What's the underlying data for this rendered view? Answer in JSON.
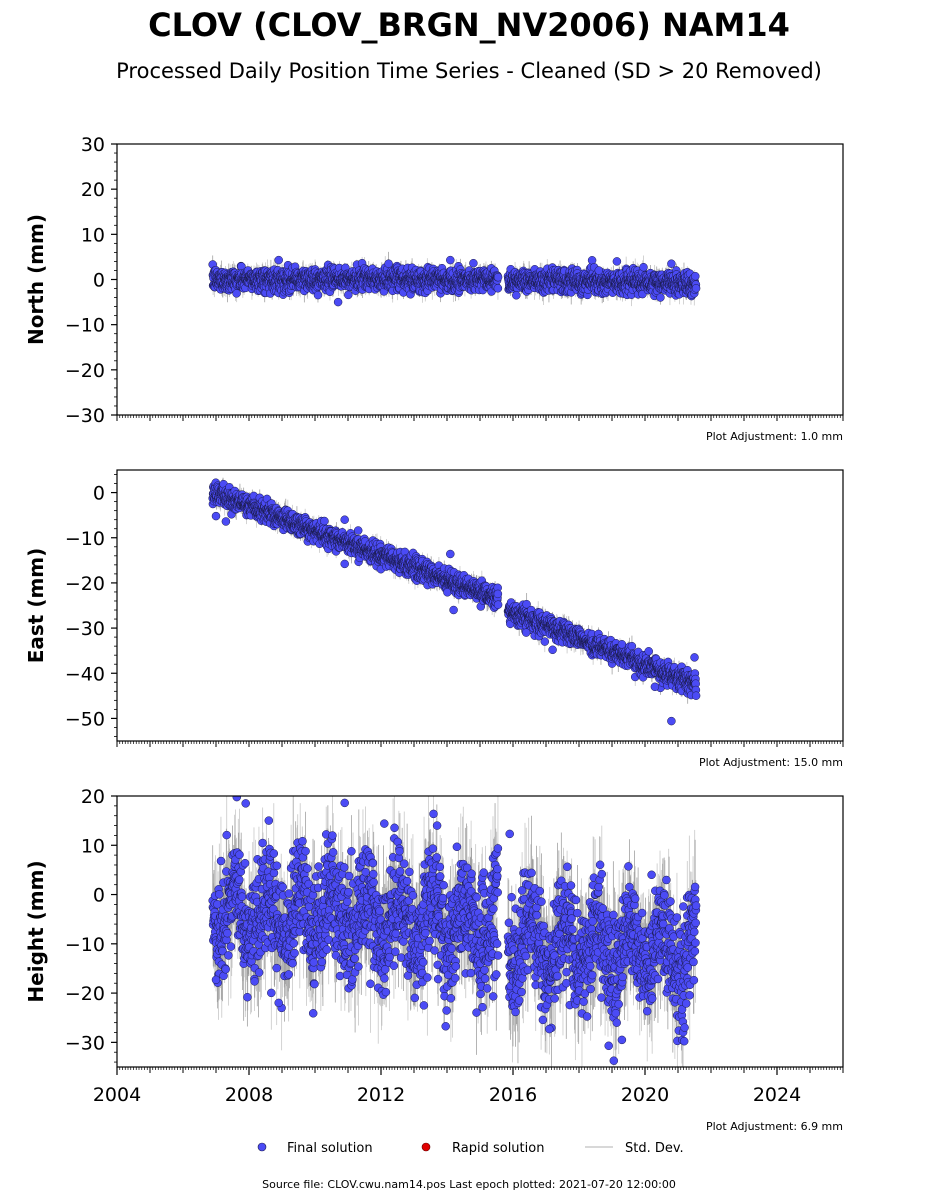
{
  "title": "CLOV (CLOV_BRGN_NV2006) NAM14",
  "subtitle": "Processed Daily Position Time Series - Cleaned (SD > 20 Removed)",
  "legend": {
    "final": "Final solution",
    "rapid": "Rapid solution",
    "std": "Std. Dev."
  },
  "footer": "Source file: CLOV.cwu.nam14.pos  Last epoch plotted: 2021-07-20 12:00:00",
  "colors": {
    "final_fill": "#4b4bf5",
    "final_edge": "#1a1a4a",
    "rapid": "#e00000",
    "stddev": "#b0b0b0"
  },
  "chart_data": [
    {
      "type": "scatter",
      "ylabel": "North (mm)",
      "adjustment": "Plot Adjustment: 1.0 mm",
      "xlim": [
        2004,
        2026
      ],
      "ylim": [
        -30,
        30
      ],
      "yticks": [
        -30,
        -20,
        -10,
        0,
        10,
        20,
        30
      ],
      "show_xtick_labels": false,
      "segments": [
        {
          "start": 2006.9,
          "end": 2015.55,
          "trend_start": 0.0,
          "trend_end": 0.0,
          "scatter": 1.2
        },
        {
          "start": 2015.85,
          "end": 2021.55,
          "trend_start": 0.0,
          "trend_end": -1.0,
          "scatter": 1.2
        }
      ],
      "outliers": [
        {
          "x": 2008.9,
          "y": 4.3
        },
        {
          "x": 2010.7,
          "y": -5.0
        },
        {
          "x": 2014.1,
          "y": 4.3
        },
        {
          "x": 2014.8,
          "y": 3.6
        },
        {
          "x": 2016.1,
          "y": -3.5
        },
        {
          "x": 2018.6,
          "y": 2.0
        },
        {
          "x": 2020.8,
          "y": 3.5
        }
      ]
    },
    {
      "type": "scatter",
      "ylabel": "East (mm)",
      "adjustment": "Plot Adjustment: 15.0 mm",
      "xlim": [
        2004,
        2026
      ],
      "ylim": [
        -55,
        5
      ],
      "yticks": [
        -50,
        -40,
        -30,
        -20,
        -10,
        0
      ],
      "show_xtick_labels": false,
      "segments": [
        {
          "start": 2006.9,
          "end": 2015.55,
          "trend_start": 0.0,
          "trend_end": -23.5,
          "scatter": 1.1
        },
        {
          "start": 2015.85,
          "end": 2021.55,
          "trend_start": -26.0,
          "trend_end": -42.5,
          "scatter": 1.1
        }
      ],
      "outliers": [
        {
          "x": 2007.0,
          "y": -5.2
        },
        {
          "x": 2007.3,
          "y": -6.4
        },
        {
          "x": 2010.9,
          "y": -6.0
        },
        {
          "x": 2010.9,
          "y": -15.8
        },
        {
          "x": 2014.1,
          "y": -13.6
        },
        {
          "x": 2014.2,
          "y": -26.0
        },
        {
          "x": 2016.4,
          "y": -31.0
        },
        {
          "x": 2017.2,
          "y": -34.8
        },
        {
          "x": 2019.3,
          "y": -33.6
        },
        {
          "x": 2020.3,
          "y": -43.0
        },
        {
          "x": 2020.8,
          "y": -50.6
        },
        {
          "x": 2021.5,
          "y": -36.5
        }
      ]
    },
    {
      "type": "scatter",
      "ylabel": "Height (mm)",
      "adjustment": "Plot Adjustment: 6.9 mm",
      "xlim": [
        2004,
        2026
      ],
      "ylim": [
        -35,
        20
      ],
      "yticks": [
        -30,
        -20,
        -10,
        0,
        10,
        20
      ],
      "xticks": [
        2004,
        2008,
        2012,
        2016,
        2020,
        2024
      ],
      "show_xtick_labels": true,
      "segments": [
        {
          "start": 2006.9,
          "end": 2015.55,
          "trend_start": -3.0,
          "trend_end": -6.0,
          "scatter": 5.5,
          "seasonal": 5.0
        },
        {
          "start": 2015.85,
          "end": 2021.55,
          "trend_start": -10.0,
          "trend_end": -12.0,
          "scatter": 5.5,
          "seasonal": 5.0
        }
      ],
      "outliers": [
        {
          "x": 2007.9,
          "y": 18.5
        },
        {
          "x": 2008.6,
          "y": 15.0
        },
        {
          "x": 2010.9,
          "y": 18.6
        },
        {
          "x": 2012.1,
          "y": 14.4
        },
        {
          "x": 2013.7,
          "y": 14.0
        },
        {
          "x": 2015.9,
          "y": 12.3
        },
        {
          "x": 2018.9,
          "y": -30.7
        },
        {
          "x": 2007.0,
          "y": -17.3
        },
        {
          "x": 2008.9,
          "y": -22.0
        },
        {
          "x": 2013.3,
          "y": -22.5
        },
        {
          "x": 2017.1,
          "y": -27.3
        },
        {
          "x": 2019.3,
          "y": -29.5
        },
        {
          "x": 2021.2,
          "y": -27.0
        },
        {
          "x": 2020.2,
          "y": 4.0
        }
      ]
    }
  ]
}
